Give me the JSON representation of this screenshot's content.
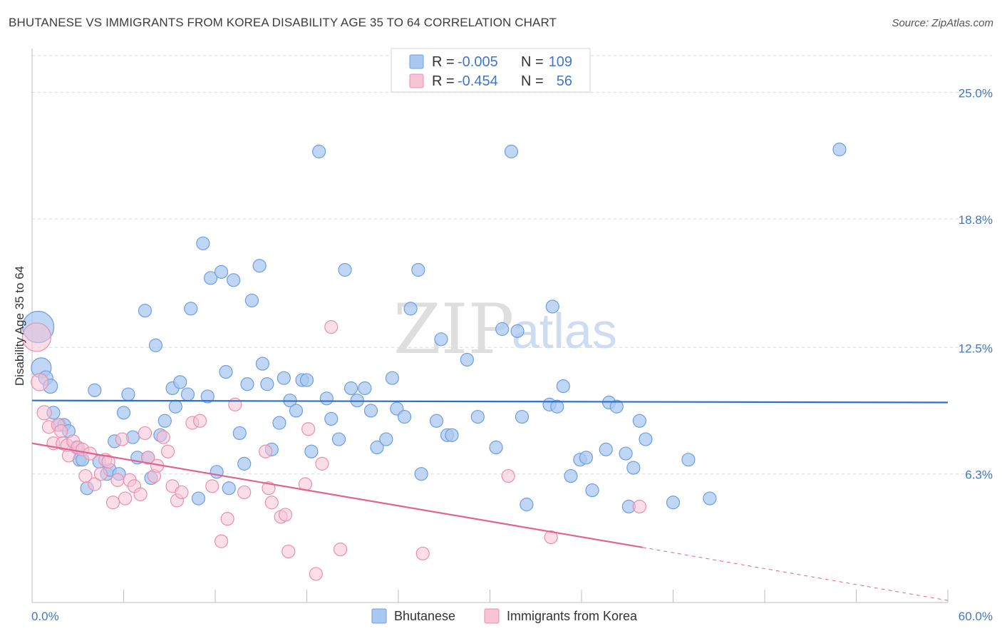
{
  "header": {
    "title": "BHUTANESE VS IMMIGRANTS FROM KOREA DISABILITY AGE 35 TO 64 CORRELATION CHART",
    "source": "Source: ZipAtlas.com"
  },
  "watermark": {
    "zip": "ZIP",
    "atlas": "atlas"
  },
  "legend": {
    "rows": [
      {
        "r_label": "R =",
        "r_value": "-0.005",
        "n_label": "N =",
        "n_value": "109",
        "color": "#a9c8f2"
      },
      {
        "r_label": "R =",
        "r_value": "-0.454",
        "n_label": "N =",
        "n_value": "56",
        "color": "#f6bcd0"
      }
    ]
  },
  "bottom_legend": {
    "items": [
      {
        "label": "Bhutanese",
        "color": "#a9c8f2"
      },
      {
        "label": "Immigrants from Korea",
        "color": "#f6bcd0"
      }
    ]
  },
  "colors": {
    "blue_fill": "#a9c8f2",
    "blue_stroke": "#6e9ee0",
    "blue_line": "#2f6fcc",
    "pink_fill": "#f8c3d4",
    "pink_stroke": "#ea8fae",
    "pink_line": "#e0648f",
    "tick_text": "#3f78c8",
    "grid": "#d9d9d9"
  },
  "chart_data": {
    "type": "scatter",
    "title": "BHUTANESE VS IMMIGRANTS FROM KOREA DISABILITY AGE 35 TO 64 CORRELATION CHART",
    "xlabel": "",
    "ylabel": "Disability Age 35 to 64",
    "xlim": [
      0,
      60
    ],
    "ylim": [
      0,
      26.8
    ],
    "x_tick_labels": [
      "0.0%",
      "60.0%"
    ],
    "y_ticks": [
      6.3,
      12.5,
      18.8,
      25.0
    ],
    "y_tick_labels": [
      "6.3%",
      "12.5%",
      "18.8%",
      "25.0%"
    ],
    "grid": true,
    "legend_position": "top-center",
    "series": [
      {
        "name": "Bhutanese",
        "trend": {
          "x0": 0,
          "y0": 9.9,
          "x1": 60,
          "y1": 9.8
        },
        "points": [
          [
            0.4,
            13.5,
            22
          ],
          [
            0.6,
            11.5,
            14
          ],
          [
            0.9,
            11.0,
            10
          ],
          [
            1.2,
            10.6,
            10
          ],
          [
            1.4,
            9.3,
            9
          ],
          [
            1.8,
            8.7,
            9
          ],
          [
            2.1,
            8.7,
            9
          ],
          [
            2.4,
            8.4,
            9
          ],
          [
            2.9,
            7.6,
            9
          ],
          [
            3.1,
            7.0,
            9
          ],
          [
            3.3,
            7.0,
            9
          ],
          [
            3.6,
            5.6,
            9
          ],
          [
            4.1,
            10.4,
            9
          ],
          [
            4.4,
            6.9,
            9
          ],
          [
            4.9,
            6.3,
            9
          ],
          [
            5.1,
            6.5,
            9
          ],
          [
            5.4,
            7.9,
            9
          ],
          [
            5.7,
            6.3,
            9
          ],
          [
            6.0,
            9.3,
            9
          ],
          [
            6.3,
            10.2,
            9
          ],
          [
            6.6,
            8.1,
            9
          ],
          [
            6.9,
            7.1,
            9
          ],
          [
            7.4,
            14.3,
            9
          ],
          [
            7.6,
            7.1,
            9
          ],
          [
            7.8,
            6.1,
            9
          ],
          [
            8.1,
            12.6,
            9
          ],
          [
            8.4,
            8.2,
            9
          ],
          [
            8.7,
            8.9,
            9
          ],
          [
            9.2,
            10.5,
            9
          ],
          [
            9.4,
            9.6,
            9
          ],
          [
            9.7,
            10.8,
            9
          ],
          [
            10.2,
            10.2,
            9
          ],
          [
            10.4,
            14.4,
            9
          ],
          [
            10.9,
            5.1,
            9
          ],
          [
            11.2,
            17.6,
            9
          ],
          [
            11.5,
            10.1,
            9
          ],
          [
            11.7,
            15.9,
            9
          ],
          [
            12.1,
            6.4,
            9
          ],
          [
            12.4,
            16.2,
            9
          ],
          [
            12.7,
            11.3,
            9
          ],
          [
            12.9,
            5.6,
            9
          ],
          [
            13.2,
            15.8,
            9
          ],
          [
            13.6,
            8.3,
            9
          ],
          [
            13.9,
            6.8,
            9
          ],
          [
            14.1,
            10.7,
            9
          ],
          [
            14.4,
            14.8,
            9
          ],
          [
            14.9,
            16.5,
            9
          ],
          [
            15.1,
            11.7,
            9
          ],
          [
            15.4,
            10.7,
            9
          ],
          [
            15.7,
            7.5,
            9
          ],
          [
            16.2,
            8.8,
            9
          ],
          [
            16.5,
            11.0,
            9
          ],
          [
            16.9,
            9.9,
            9
          ],
          [
            17.3,
            9.4,
            9
          ],
          [
            17.7,
            10.9,
            9
          ],
          [
            18.0,
            10.9,
            9
          ],
          [
            18.3,
            7.4,
            9
          ],
          [
            18.8,
            22.1,
            9
          ],
          [
            19.3,
            10.0,
            9
          ],
          [
            19.6,
            9.0,
            9
          ],
          [
            20.1,
            8.0,
            9
          ],
          [
            20.5,
            16.3,
            9
          ],
          [
            20.9,
            10.5,
            9
          ],
          [
            21.3,
            9.9,
            9
          ],
          [
            21.8,
            10.5,
            9
          ],
          [
            22.2,
            9.4,
            9
          ],
          [
            22.6,
            7.6,
            9
          ],
          [
            23.2,
            8.0,
            9
          ],
          [
            23.6,
            11.0,
            9
          ],
          [
            23.9,
            9.5,
            9
          ],
          [
            24.4,
            9.1,
            9
          ],
          [
            24.8,
            14.4,
            9
          ],
          [
            25.3,
            16.3,
            9
          ],
          [
            25.5,
            6.3,
            9
          ],
          [
            26.5,
            8.9,
            9
          ],
          [
            26.8,
            12.9,
            9
          ],
          [
            27.2,
            8.2,
            9
          ],
          [
            27.5,
            8.2,
            9
          ],
          [
            28.5,
            11.9,
            9
          ],
          [
            29.2,
            9.1,
            9
          ],
          [
            30.4,
            7.6,
            9
          ],
          [
            30.8,
            13.4,
            9
          ],
          [
            31.4,
            22.1,
            9
          ],
          [
            31.8,
            13.3,
            9
          ],
          [
            32.1,
            9.1,
            9
          ],
          [
            32.4,
            4.8,
            9
          ],
          [
            33.9,
            9.7,
            9
          ],
          [
            34.1,
            14.5,
            9
          ],
          [
            34.4,
            9.6,
            9
          ],
          [
            34.8,
            10.6,
            9
          ],
          [
            35.3,
            6.2,
            9
          ],
          [
            35.9,
            7.0,
            9
          ],
          [
            36.3,
            7.1,
            9
          ],
          [
            36.7,
            5.5,
            9
          ],
          [
            37.6,
            7.5,
            9
          ],
          [
            37.8,
            9.8,
            9
          ],
          [
            38.3,
            9.6,
            9
          ],
          [
            38.9,
            7.3,
            9
          ],
          [
            39.1,
            4.7,
            9
          ],
          [
            39.4,
            6.6,
            9
          ],
          [
            39.8,
            8.9,
            9
          ],
          [
            40.2,
            8.0,
            9
          ],
          [
            42.0,
            4.9,
            9
          ],
          [
            43.0,
            7.0,
            9
          ],
          [
            44.4,
            5.1,
            9
          ],
          [
            52.9,
            22.2,
            9
          ]
        ]
      },
      {
        "name": "Immigrants from Korea",
        "trend": {
          "x0": 0,
          "y0": 7.8,
          "x1": 40,
          "y1": 2.7
        },
        "trend_extension": {
          "x0": 40,
          "y0": 2.7,
          "x1": 60,
          "y1": 0.1
        },
        "points": [
          [
            0.3,
            13.0,
            20
          ],
          [
            0.5,
            10.8,
            12
          ],
          [
            0.8,
            9.3,
            10
          ],
          [
            1.1,
            8.6,
            9
          ],
          [
            1.4,
            7.8,
            9
          ],
          [
            1.7,
            8.7,
            9
          ],
          [
            1.9,
            8.4,
            9
          ],
          [
            2.0,
            7.8,
            9
          ],
          [
            2.3,
            7.7,
            9
          ],
          [
            2.4,
            7.2,
            9
          ],
          [
            2.7,
            7.9,
            9
          ],
          [
            3.0,
            7.6,
            9
          ],
          [
            3.3,
            7.5,
            9
          ],
          [
            3.5,
            6.2,
            9
          ],
          [
            3.8,
            7.3,
            9
          ],
          [
            4.1,
            5.8,
            9
          ],
          [
            4.5,
            6.3,
            9
          ],
          [
            4.8,
            7.0,
            9
          ],
          [
            5.0,
            6.9,
            9
          ],
          [
            5.3,
            4.9,
            9
          ],
          [
            5.6,
            6.0,
            9
          ],
          [
            5.9,
            8.0,
            9
          ],
          [
            6.1,
            5.1,
            9
          ],
          [
            6.4,
            6.0,
            9
          ],
          [
            6.7,
            5.7,
            9
          ],
          [
            7.1,
            5.3,
            9
          ],
          [
            7.4,
            8.3,
            9
          ],
          [
            7.6,
            7.1,
            9
          ],
          [
            8.0,
            6.2,
            9
          ],
          [
            8.2,
            6.7,
            9
          ],
          [
            8.6,
            8.1,
            9
          ],
          [
            8.9,
            7.4,
            9
          ],
          [
            9.2,
            5.7,
            9
          ],
          [
            9.5,
            5.0,
            9
          ],
          [
            9.8,
            5.4,
            9
          ],
          [
            10.5,
            8.8,
            9
          ],
          [
            11.0,
            8.9,
            9
          ],
          [
            11.8,
            5.7,
            9
          ],
          [
            12.4,
            3.0,
            9
          ],
          [
            12.8,
            4.1,
            9
          ],
          [
            13.3,
            9.7,
            9
          ],
          [
            13.9,
            5.4,
            9
          ],
          [
            15.3,
            7.4,
            9
          ],
          [
            15.5,
            5.6,
            9
          ],
          [
            15.7,
            4.9,
            9
          ],
          [
            16.3,
            4.2,
            9
          ],
          [
            16.6,
            4.3,
            9
          ],
          [
            16.8,
            2.5,
            9
          ],
          [
            17.9,
            5.8,
            9
          ],
          [
            18.1,
            8.5,
            9
          ],
          [
            18.6,
            1.4,
            9
          ],
          [
            19.0,
            6.8,
            9
          ],
          [
            19.6,
            13.5,
            9
          ],
          [
            20.2,
            2.6,
            9
          ],
          [
            25.6,
            2.4,
            9
          ],
          [
            31.2,
            6.2,
            9
          ],
          [
            34.0,
            3.2,
            9
          ],
          [
            39.8,
            4.7,
            9
          ]
        ]
      }
    ]
  }
}
